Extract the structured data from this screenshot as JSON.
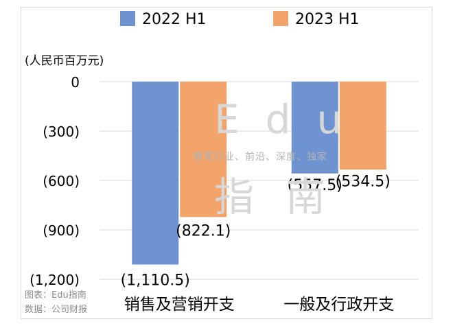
{
  "chart_data": {
    "type": "bar",
    "unit_label": "(人民币百万元)",
    "categories": [
      "销售及营销开支",
      "一般及行政开支"
    ],
    "series": [
      {
        "name": "2022 H1",
        "color": "#6f93d1",
        "values": [
          -1110.5,
          -557.5
        ],
        "labels": [
          "(1,110.5)",
          "(557.5)"
        ]
      },
      {
        "name": "2023 H1",
        "color": "#f3a46a",
        "values": [
          -822.1,
          -534.5
        ],
        "labels": [
          "(822.1)",
          "(534.5)"
        ]
      }
    ],
    "ylim": [
      -1200,
      0
    ],
    "yticks": [
      0,
      -300,
      -600,
      -900,
      -1200
    ],
    "ytick_labels": [
      "0",
      "(300)",
      "(600)",
      "(900)",
      "(1,200)"
    ],
    "grid": true,
    "legend": "top"
  },
  "watermark": {
    "main": "Edu",
    "sub": "教育行业、前沿、深度、独家",
    "chinese": "指南"
  },
  "source": {
    "chart_credit": "图表：Edu指南",
    "data_credit": "数据：公司财报"
  }
}
